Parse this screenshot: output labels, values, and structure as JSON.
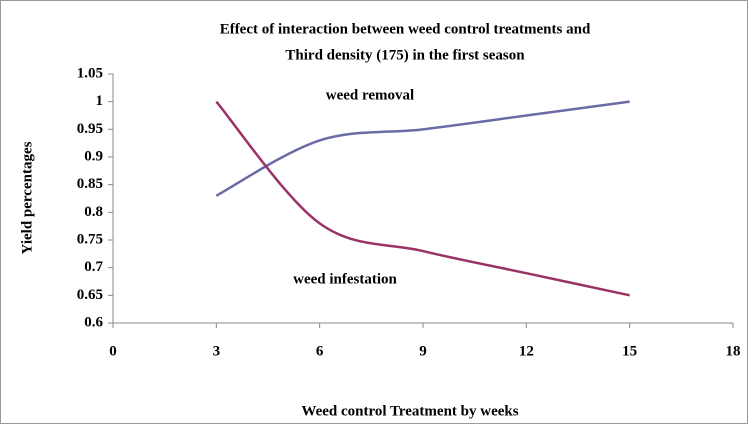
{
  "chart_data": {
    "type": "line",
    "title": [
      "Effect of interaction between weed control treatments and",
      "Third density  (175) in the first season"
    ],
    "xlabel": "Weed control Treatment by weeks",
    "ylabel": "Yield percentages",
    "annotations": [
      "weed removal",
      "weed infestation"
    ],
    "x": [
      3,
      6,
      9,
      12,
      15
    ],
    "series": [
      {
        "name": "weed removal",
        "color": "#6b6ba6",
        "values": [
          0.83,
          0.93,
          0.95,
          0.975,
          1.0
        ]
      },
      {
        "name": "weed infestation",
        "color": "#993366",
        "values": [
          1.0,
          0.78,
          0.73,
          0.69,
          0.65
        ]
      }
    ],
    "xlim": [
      0,
      18
    ],
    "xticks": [
      0,
      3,
      6,
      9,
      12,
      15,
      18
    ],
    "ylim": [
      0.6,
      1.05
    ],
    "yticks": [
      0.6,
      0.65,
      0.7,
      0.75,
      0.8,
      0.85,
      0.9,
      0.95,
      1,
      1.05
    ],
    "smooth": true
  }
}
